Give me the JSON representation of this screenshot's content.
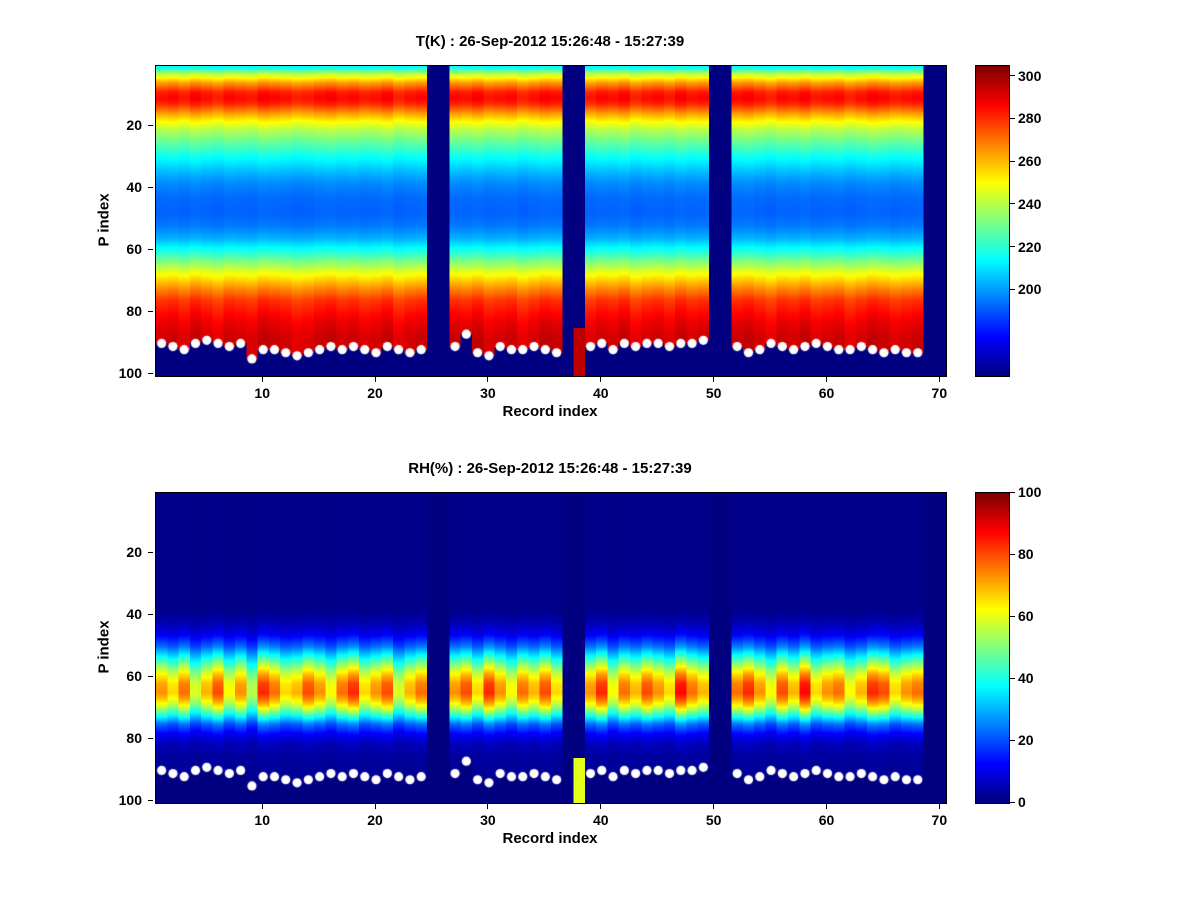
{
  "figure": {
    "background_color": "#ffffff",
    "text_color": "#000000"
  },
  "chart_data": [
    {
      "type": "heatmap",
      "title": "T(K) : 26-Sep-2012 15:26:48 - 15:27:39",
      "xlabel": "Record index",
      "ylabel": "P index",
      "colormap": "jet",
      "x_range": [
        1,
        70
      ],
      "y_range": [
        1,
        100
      ],
      "y_axis_reversed": true,
      "color_range": [
        160,
        305
      ],
      "xticks": [
        10,
        20,
        30,
        40,
        50,
        60,
        70
      ],
      "yticks": [
        20,
        40,
        60,
        80,
        100
      ],
      "colorbar_ticks": [
        200,
        220,
        240,
        260,
        280,
        300
      ],
      "profile_p_value": [
        [
          1,
          215
        ],
        [
          3,
          240
        ],
        [
          6,
          265
        ],
        [
          9,
          283
        ],
        [
          11,
          286
        ],
        [
          13,
          280
        ],
        [
          16,
          263
        ],
        [
          19,
          248
        ],
        [
          22,
          237
        ],
        [
          26,
          226
        ],
        [
          30,
          215
        ],
        [
          34,
          206
        ],
        [
          38,
          198
        ],
        [
          43,
          193
        ],
        [
          48,
          192
        ],
        [
          52,
          195
        ],
        [
          56,
          203
        ],
        [
          60,
          217
        ],
        [
          64,
          234
        ],
        [
          68,
          251
        ],
        [
          72,
          266
        ],
        [
          76,
          279
        ],
        [
          80,
          285
        ],
        [
          84,
          290
        ],
        [
          88,
          293
        ],
        [
          100,
          295
        ]
      ],
      "column_factors": [
        1.0,
        1.01,
        0.99,
        1.02,
        1.0,
        0.98,
        1.01,
        1.0,
        0.99,
        1.02,
        1.01,
        1.0,
        0.98,
        0.99,
        1.01,
        1.02,
        1.0,
        1.01,
        0.99,
        1.0,
        1.02,
        0.98,
        1.0,
        1.01,
        1.0,
        0.99,
        1.01,
        1.0,
        1.02,
        0.99,
        1.0,
        1.01,
        0.98,
        1.0,
        1.02,
        1.01,
        1.0,
        1.0,
        0.99,
        1.01,
        1.0,
        1.02,
        0.98,
        1.0,
        1.01,
        0.99,
        1.02,
        1.0,
        1.01,
        1.0,
        0.99,
        1.01,
        1.02,
        1.0,
        0.98,
        1.01,
        1.0,
        1.02,
        0.99,
        1.0,
        1.01,
        0.98,
        1.0,
        1.02,
        1.01,
        0.99,
        1.0,
        1.01,
        1.0,
        1.0
      ],
      "missing_records": [
        25,
        26,
        37,
        50,
        51,
        69,
        70
      ],
      "partial_column": {
        "record": 38,
        "from_p": 85,
        "value": 296
      },
      "surface_p_by_record": [
        90,
        91,
        92,
        90,
        89,
        90,
        91,
        90,
        95,
        92,
        92,
        93,
        94,
        93,
        92,
        91,
        92,
        91,
        92,
        93,
        91,
        92,
        93,
        92,
        null,
        null,
        91,
        87,
        93,
        94,
        91,
        92,
        92,
        91,
        92,
        93,
        null,
        null,
        91,
        90,
        92,
        90,
        91,
        90,
        90,
        91,
        90,
        90,
        89,
        null,
        null,
        91,
        93,
        92,
        90,
        91,
        92,
        91,
        90,
        91,
        92,
        92,
        91,
        92,
        93,
        92,
        93,
        93,
        null,
        null
      ],
      "marker": {
        "shape": "circle",
        "color": "#ffffff"
      }
    },
    {
      "type": "heatmap",
      "title": "RH(%) : 26-Sep-2012 15:26:48 - 15:27:39",
      "xlabel": "Record index",
      "ylabel": "P index",
      "colormap": "jet",
      "x_range": [
        1,
        70
      ],
      "y_range": [
        1,
        100
      ],
      "y_axis_reversed": true,
      "color_range": [
        0,
        100
      ],
      "xticks": [
        10,
        20,
        30,
        40,
        50,
        60,
        70
      ],
      "yticks": [
        20,
        40,
        60,
        80,
        100
      ],
      "colorbar_ticks": [
        0,
        20,
        40,
        60,
        80,
        100
      ],
      "profile_p_value": [
        [
          1,
          1
        ],
        [
          38,
          1
        ],
        [
          42,
          4
        ],
        [
          46,
          10
        ],
        [
          50,
          22
        ],
        [
          53,
          35
        ],
        [
          56,
          48
        ],
        [
          59,
          60
        ],
        [
          62,
          68
        ],
        [
          65,
          70
        ],
        [
          67,
          65
        ],
        [
          69,
          57
        ],
        [
          71,
          46
        ],
        [
          73,
          34
        ],
        [
          75,
          22
        ],
        [
          78,
          12
        ],
        [
          81,
          6
        ],
        [
          85,
          3
        ],
        [
          100,
          1
        ]
      ],
      "column_factors": [
        1.05,
        0.95,
        1.1,
        0.85,
        1.0,
        1.15,
        0.9,
        1.05,
        0.8,
        1.2,
        1.1,
        0.95,
        1.0,
        1.15,
        1.05,
        0.9,
        1.1,
        1.2,
        0.95,
        1.05,
        1.15,
        0.85,
        1.0,
        1.1,
        1.0,
        0.9,
        1.05,
        1.15,
        0.95,
        1.2,
        1.05,
        0.9,
        1.1,
        1.0,
        1.15,
        0.95,
        1.0,
        1.0,
        1.05,
        1.2,
        0.9,
        1.1,
        1.0,
        1.15,
        1.05,
        0.95,
        1.25,
        1.1,
        1.0,
        1.0,
        0.95,
        1.1,
        1.2,
        1.05,
        0.9,
        1.15,
        1.0,
        1.25,
        0.95,
        1.05,
        1.1,
        0.9,
        1.0,
        1.2,
        1.15,
        0.95,
        1.05,
        1.1,
        1.0,
        1.0
      ],
      "missing_records": [
        25,
        26,
        37,
        50,
        51,
        69,
        70
      ],
      "partial_column": {
        "record": 38,
        "from_p": 86,
        "value": 60
      },
      "surface_p_by_record": [
        90,
        91,
        92,
        90,
        89,
        90,
        91,
        90,
        95,
        92,
        92,
        93,
        94,
        93,
        92,
        91,
        92,
        91,
        92,
        93,
        91,
        92,
        93,
        92,
        null,
        null,
        91,
        87,
        93,
        94,
        91,
        92,
        92,
        91,
        92,
        93,
        null,
        null,
        91,
        90,
        92,
        90,
        91,
        90,
        90,
        91,
        90,
        90,
        89,
        null,
        null,
        91,
        93,
        92,
        90,
        91,
        92,
        91,
        90,
        91,
        92,
        92,
        91,
        92,
        93,
        92,
        93,
        93,
        null,
        null
      ],
      "marker": {
        "shape": "circle",
        "color": "#ffffff"
      }
    }
  ]
}
